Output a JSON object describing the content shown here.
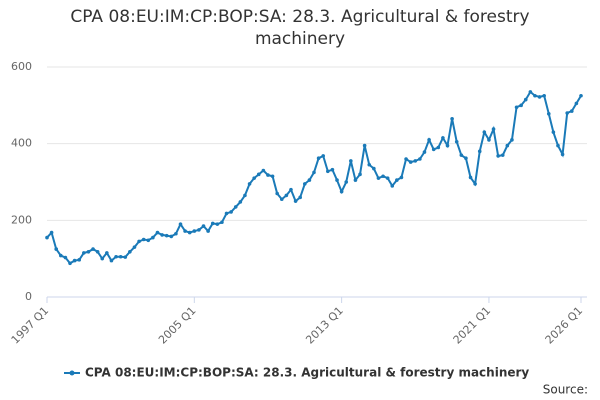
{
  "chart_data": {
    "type": "line",
    "title": "CPA 08:EU:IM:CP:BOP:SA: 28.3. Agricultural & forestry machinery",
    "categories": [
      "1997 Q1",
      null,
      null,
      null,
      null,
      null,
      null,
      null,
      null,
      null,
      null,
      null,
      null,
      null,
      null,
      null,
      null,
      null,
      null,
      null,
      null,
      null,
      null,
      null,
      null,
      null,
      null,
      null,
      null,
      null,
      null,
      null,
      "2005 Q1",
      null,
      null,
      null,
      null,
      null,
      null,
      null,
      null,
      null,
      null,
      null,
      null,
      null,
      null,
      null,
      null,
      null,
      null,
      null,
      null,
      null,
      null,
      null,
      null,
      null,
      null,
      null,
      null,
      null,
      null,
      null,
      "2013 Q1",
      null,
      null,
      null,
      null,
      null,
      null,
      null,
      null,
      null,
      null,
      null,
      null,
      null,
      null,
      null,
      null,
      null,
      null,
      null,
      null,
      null,
      null,
      null,
      null,
      null,
      null,
      null,
      null,
      null,
      null,
      null,
      "2021 Q1",
      null,
      null,
      null,
      null,
      null,
      null,
      null,
      null,
      null,
      null,
      null,
      null,
      null,
      null,
      null,
      null,
      null,
      null,
      null,
      "2026 Q1"
    ],
    "series": [
      {
        "name": "CPA 08:EU:IM:CP:BOP:SA: 28.3. Agricultural & forestry machinery",
        "color": "#1a7ab8",
        "values": [
          155,
          168,
          125,
          108,
          103,
          88,
          95,
          97,
          115,
          118,
          125,
          118,
          100,
          115,
          95,
          105,
          105,
          104,
          118,
          130,
          145,
          150,
          148,
          155,
          168,
          162,
          160,
          158,
          165,
          190,
          172,
          168,
          172,
          175,
          185,
          172,
          192,
          190,
          195,
          218,
          222,
          235,
          248,
          265,
          295,
          310,
          320,
          330,
          318,
          315,
          270,
          255,
          265,
          280,
          250,
          260,
          295,
          305,
          325,
          362,
          368,
          328,
          332,
          305,
          275,
          300,
          355,
          305,
          320,
          395,
          345,
          335,
          310,
          315,
          310,
          290,
          305,
          312,
          360,
          352,
          355,
          360,
          378,
          410,
          385,
          390,
          415,
          395,
          465,
          405,
          370,
          362,
          312,
          295,
          380,
          430,
          410,
          438,
          368,
          370,
          395,
          410,
          495,
          500,
          515,
          535,
          525,
          522,
          525,
          478,
          430,
          395,
          372,
          480,
          485,
          505,
          525
        ]
      }
    ],
    "ylim": [
      0,
      600
    ],
    "yticks": [
      0,
      200,
      400,
      600
    ],
    "grid": true,
    "source": "Source:"
  }
}
